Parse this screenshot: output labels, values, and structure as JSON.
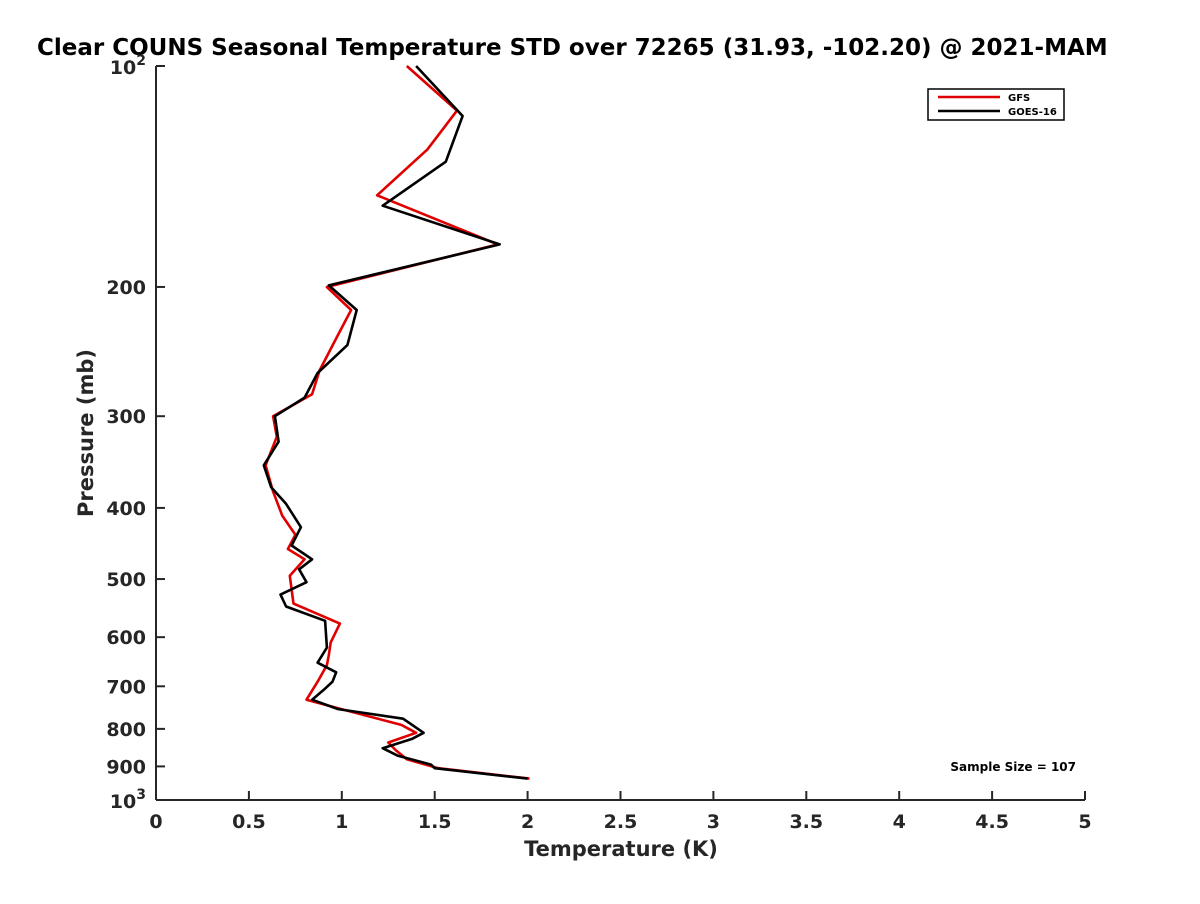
{
  "chart_data": {
    "type": "line",
    "title": "Clear COUNS Seasonal Temperature STD over 72265 (31.93, -102.20) @ 2021-MAM",
    "xlabel": "Temperature (K)",
    "ylabel": "Pressure (mb)",
    "xlim": [
      0,
      5
    ],
    "ylim": [
      100,
      1000
    ],
    "y_scale": "log",
    "y_reversed": true,
    "grid": false,
    "x_ticks": [
      0,
      0.5,
      1,
      1.5,
      2,
      2.5,
      3,
      3.5,
      4,
      4.5,
      5
    ],
    "x_tick_labels": [
      "0",
      "0.5",
      "1",
      "1.5",
      "2",
      "2.5",
      "3",
      "3.5",
      "4",
      "4.5",
      "5"
    ],
    "y_ticks": [
      200,
      300,
      400,
      500,
      600,
      700,
      800,
      900
    ],
    "y_tick_labels": [
      "200",
      "300",
      "400",
      "500",
      "600",
      "700",
      "800",
      "900"
    ],
    "y_limit_labels": [
      {
        "value": 100,
        "base": "10",
        "exp": "2"
      },
      {
        "value": 1000,
        "base": "10",
        "exp": "3"
      }
    ],
    "legend_position": "top-right",
    "annotation": "Sample Size = 107",
    "series": [
      {
        "name": "GFS",
        "color": "#e00000",
        "points": [
          [
            1.35,
            100
          ],
          [
            1.62,
            115
          ],
          [
            1.46,
            130
          ],
          [
            1.19,
            150
          ],
          [
            1.84,
            175
          ],
          [
            0.92,
            200
          ],
          [
            1.05,
            215
          ],
          [
            0.97,
            235
          ],
          [
            0.88,
            260
          ],
          [
            0.84,
            280
          ],
          [
            0.63,
            300
          ],
          [
            0.65,
            320
          ],
          [
            0.59,
            350
          ],
          [
            0.63,
            380
          ],
          [
            0.68,
            410
          ],
          [
            0.75,
            435
          ],
          [
            0.71,
            455
          ],
          [
            0.8,
            470
          ],
          [
            0.72,
            495
          ],
          [
            0.74,
            540
          ],
          [
            0.99,
            575
          ],
          [
            0.94,
            610
          ],
          [
            0.93,
            635
          ],
          [
            0.92,
            655
          ],
          [
            0.87,
            690
          ],
          [
            0.81,
            730
          ],
          [
            0.98,
            750
          ],
          [
            1.32,
            790
          ],
          [
            1.4,
            810
          ],
          [
            1.25,
            835
          ],
          [
            1.29,
            855
          ],
          [
            1.35,
            880
          ],
          [
            1.52,
            905
          ],
          [
            2.01,
            935
          ]
        ]
      },
      {
        "name": "GOES-16",
        "color": "#000000",
        "points": [
          [
            1.4,
            100
          ],
          [
            1.65,
            117
          ],
          [
            1.56,
            135
          ],
          [
            1.22,
            155
          ],
          [
            1.85,
            175
          ],
          [
            0.93,
            199
          ],
          [
            1.08,
            215
          ],
          [
            1.03,
            240
          ],
          [
            0.87,
            262
          ],
          [
            0.8,
            283
          ],
          [
            0.64,
            300
          ],
          [
            0.66,
            325
          ],
          [
            0.58,
            350
          ],
          [
            0.62,
            375
          ],
          [
            0.7,
            395
          ],
          [
            0.78,
            425
          ],
          [
            0.73,
            450
          ],
          [
            0.84,
            470
          ],
          [
            0.77,
            485
          ],
          [
            0.81,
            505
          ],
          [
            0.67,
            525
          ],
          [
            0.7,
            545
          ],
          [
            0.91,
            570
          ],
          [
            0.92,
            620
          ],
          [
            0.87,
            650
          ],
          [
            0.97,
            670
          ],
          [
            0.95,
            690
          ],
          [
            0.91,
            705
          ],
          [
            0.84,
            730
          ],
          [
            0.98,
            752
          ],
          [
            1.33,
            775
          ],
          [
            1.44,
            810
          ],
          [
            1.38,
            825
          ],
          [
            1.22,
            850
          ],
          [
            1.3,
            870
          ],
          [
            1.48,
            895
          ],
          [
            1.5,
            905
          ],
          [
            2.0,
            935
          ]
        ]
      }
    ]
  }
}
